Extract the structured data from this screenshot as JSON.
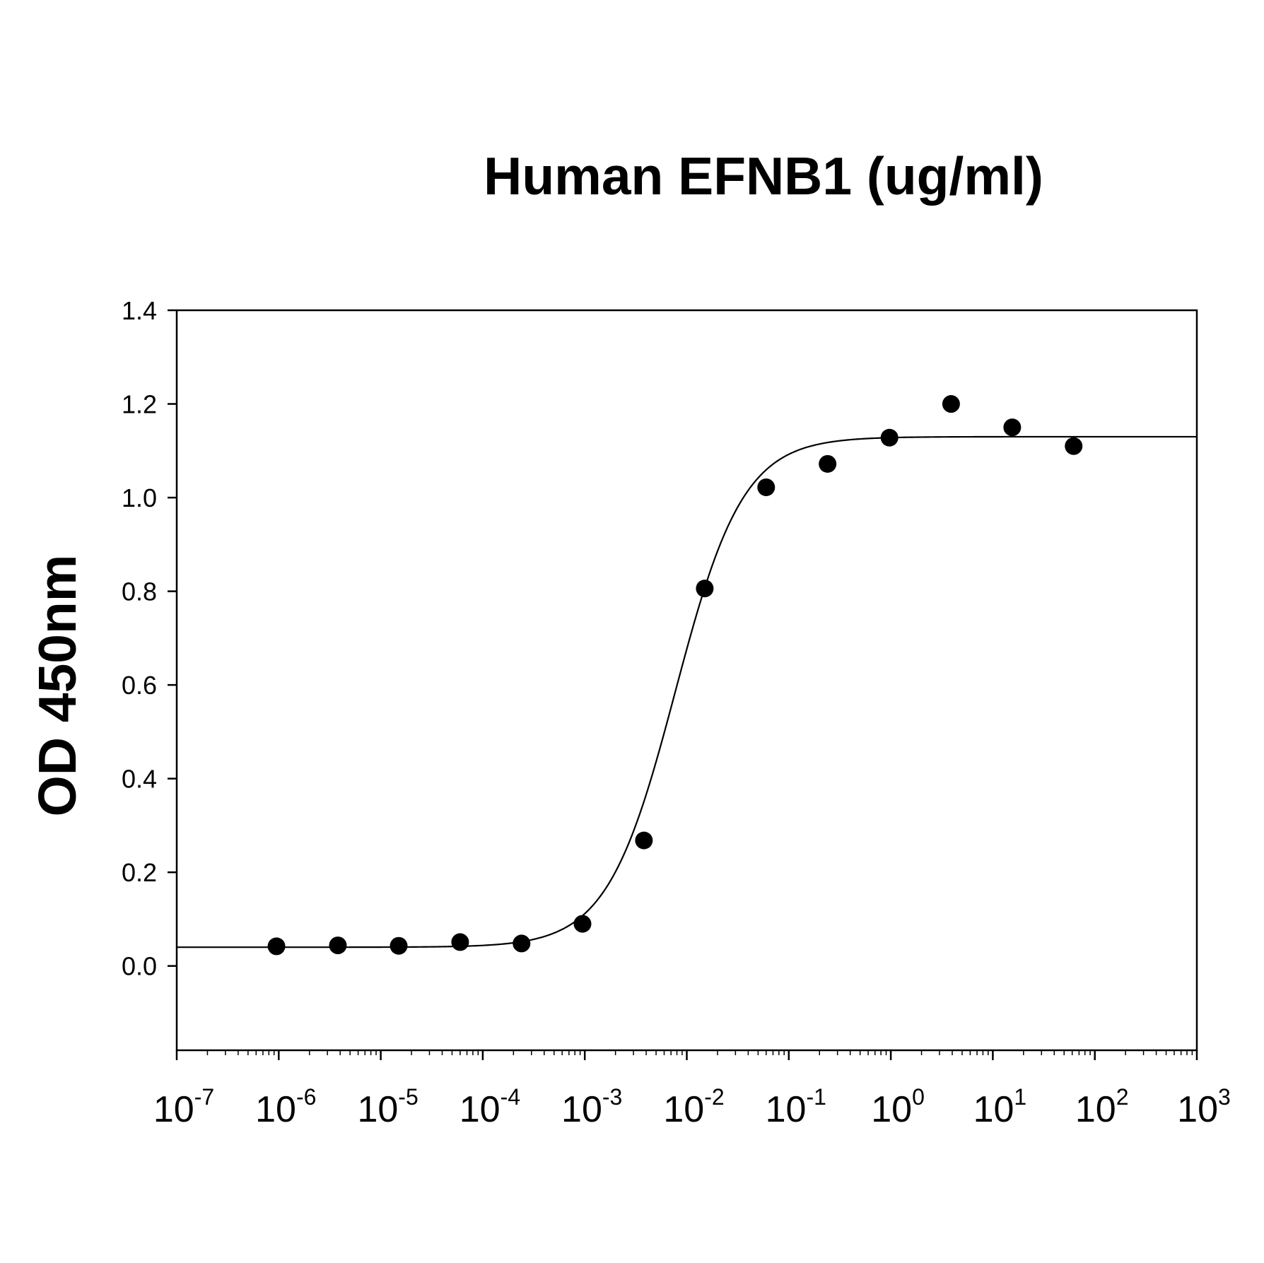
{
  "chart_data": {
    "type": "scatter",
    "title": "Human EFNB1 (ug/ml)",
    "xlabel": "",
    "ylabel": "OD 450nm",
    "xscale": "log",
    "xlim_exponents": [
      -7,
      3
    ],
    "ylim": [
      -0.18,
      1.4
    ],
    "y_ticks": [
      "0.0",
      "0.2",
      "0.4",
      "0.6",
      "0.8",
      "1.0",
      "1.2",
      "1.4"
    ],
    "x_ticks": [
      {
        "base": "10",
        "exp": "-7"
      },
      {
        "base": "10",
        "exp": "-6"
      },
      {
        "base": "10",
        "exp": "-5"
      },
      {
        "base": "10",
        "exp": "-4"
      },
      {
        "base": "10",
        "exp": "-3"
      },
      {
        "base": "10",
        "exp": "-2"
      },
      {
        "base": "10",
        "exp": "-1"
      },
      {
        "base": "10",
        "exp": "0"
      },
      {
        "base": "10",
        "exp": "1"
      },
      {
        "base": "10",
        "exp": "2"
      },
      {
        "base": "10",
        "exp": "3"
      }
    ],
    "grid": false,
    "legend": "none",
    "series": [
      {
        "marker": "filled-circle",
        "color": "#000000",
        "points": [
          {
            "x": 9.5e-07,
            "y": 0.042
          },
          {
            "x": 3.8e-06,
            "y": 0.044
          },
          {
            "x": 1.5e-05,
            "y": 0.043
          },
          {
            "x": 6e-05,
            "y": 0.051
          },
          {
            "x": 0.00024,
            "y": 0.048
          },
          {
            "x": 0.00095,
            "y": 0.09
          },
          {
            "x": 0.0038,
            "y": 0.268
          },
          {
            "x": 0.015,
            "y": 0.806
          },
          {
            "x": 0.06,
            "y": 1.022
          },
          {
            "x": 0.24,
            "y": 1.072
          },
          {
            "x": 0.97,
            "y": 1.128
          },
          {
            "x": 3.9,
            "y": 1.2
          },
          {
            "x": 15.5,
            "y": 1.15
          },
          {
            "x": 62,
            "y": 1.11
          }
        ]
      }
    ],
    "fit_curve": {
      "model": "4PL",
      "bottom": 0.04,
      "top": 1.13,
      "ec50": 0.0077,
      "hill": 1.3,
      "color": "#000000"
    }
  }
}
